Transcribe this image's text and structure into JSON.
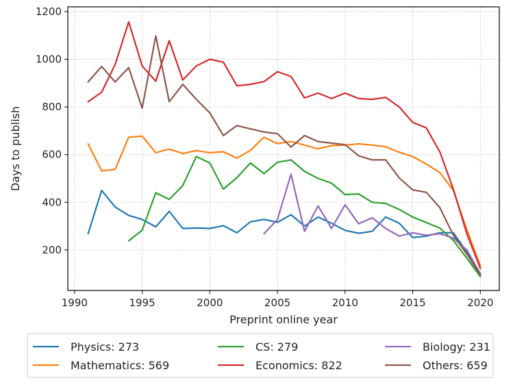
{
  "chart_data": {
    "type": "line",
    "title": "",
    "xlabel": "Preprint online year",
    "ylabel": "Days to publish",
    "xlim": [
      1989.5,
      2021.4
    ],
    "ylim": [
      30,
      1220
    ],
    "xticks": [
      1990,
      1995,
      2000,
      2005,
      2010,
      2015,
      2020
    ],
    "yticks": [
      200,
      400,
      600,
      800,
      1000,
      1200
    ],
    "grid": true,
    "legend_position": "bottom",
    "series": [
      {
        "name": "Physics",
        "legend": "Physics: 273",
        "color": "#1f77b4",
        "x": [
          1991,
          1992,
          1993,
          1994,
          1995,
          1996,
          1997,
          1998,
          1999,
          2000,
          2001,
          2002,
          2003,
          2004,
          2005,
          2006,
          2007,
          2008,
          2009,
          2010,
          2011,
          2012,
          2013,
          2014,
          2015,
          2016,
          2017,
          2018,
          2019,
          2020
        ],
        "values": [
          268,
          450,
          380,
          345,
          328,
          297,
          362,
          290,
          292,
          290,
          302,
          272,
          318,
          328,
          316,
          348,
          300,
          338,
          312,
          282,
          270,
          278,
          338,
          312,
          252,
          258,
          272,
          272,
          192,
          88
        ]
      },
      {
        "name": "Mathematics",
        "legend": "Mathematics: 569",
        "color": "#ff7f0e",
        "x": [
          1991,
          1992,
          1993,
          1994,
          1995,
          1996,
          1997,
          1998,
          1999,
          2000,
          2001,
          2002,
          2003,
          2004,
          2005,
          2006,
          2007,
          2008,
          2009,
          2010,
          2011,
          2012,
          2013,
          2014,
          2015,
          2016,
          2017,
          2018,
          2019,
          2020
        ],
        "values": [
          645,
          532,
          538,
          673,
          678,
          608,
          623,
          605,
          617,
          608,
          612,
          585,
          618,
          673,
          646,
          655,
          640,
          624,
          638,
          640,
          645,
          640,
          633,
          610,
          592,
          560,
          525,
          450,
          285,
          133
        ]
      },
      {
        "name": "CS",
        "legend": "CS: 279",
        "color": "#2ca02c",
        "x": [
          1994,
          1995,
          1996,
          1997,
          1998,
          1999,
          2000,
          2001,
          2002,
          2003,
          2004,
          2005,
          2006,
          2007,
          2008,
          2009,
          2010,
          2011,
          2012,
          2013,
          2014,
          2015,
          2016,
          2017,
          2018,
          2019,
          2020
        ],
        "values": [
          238,
          283,
          440,
          412,
          470,
          592,
          565,
          455,
          503,
          565,
          520,
          568,
          578,
          530,
          500,
          480,
          432,
          435,
          400,
          395,
          370,
          338,
          315,
          292,
          240,
          165,
          88
        ]
      },
      {
        "name": "Economics",
        "legend": "Economics: 822",
        "color": "#d62728",
        "x": [
          1991,
          1992,
          1993,
          1994,
          1995,
          1996,
          1997,
          1998,
          1999,
          2000,
          2001,
          2002,
          2003,
          2004,
          2005,
          2006,
          2007,
          2008,
          2009,
          2010,
          2011,
          2012,
          2013,
          2014,
          2015,
          2016,
          2017,
          2018,
          2019,
          2020
        ],
        "values": [
          822,
          862,
          978,
          1157,
          972,
          908,
          1078,
          913,
          972,
          1000,
          988,
          889,
          895,
          906,
          948,
          928,
          838,
          858,
          835,
          858,
          835,
          832,
          840,
          800,
          735,
          712,
          612,
          455,
          268,
          122
        ]
      },
      {
        "name": "Biology",
        "legend": "Biology: 231",
        "color": "#9467bd",
        "x": [
          2004,
          2005,
          2006,
          2007,
          2008,
          2009,
          2010,
          2011,
          2012,
          2013,
          2014,
          2015,
          2016,
          2017,
          2018,
          2019,
          2020
        ],
        "values": [
          268,
          328,
          518,
          278,
          385,
          290,
          390,
          310,
          335,
          290,
          258,
          272,
          262,
          268,
          250,
          200,
          100
        ]
      },
      {
        "name": "Others",
        "legend": "Others: 659",
        "color": "#8c564b",
        "x": [
          1991,
          1992,
          1993,
          1994,
          1995,
          1996,
          1997,
          1998,
          1999,
          2000,
          2001,
          2002,
          2003,
          2004,
          2005,
          2006,
          2007,
          2008,
          2009,
          2010,
          2011,
          2012,
          2013,
          2014,
          2015,
          2016,
          2017,
          2018,
          2019,
          2020
        ],
        "values": [
          905,
          970,
          905,
          965,
          795,
          1098,
          822,
          895,
          832,
          775,
          680,
          722,
          708,
          695,
          688,
          632,
          680,
          655,
          648,
          642,
          595,
          578,
          578,
          502,
          452,
          442,
          378,
          262,
          182,
          95
        ]
      }
    ]
  }
}
